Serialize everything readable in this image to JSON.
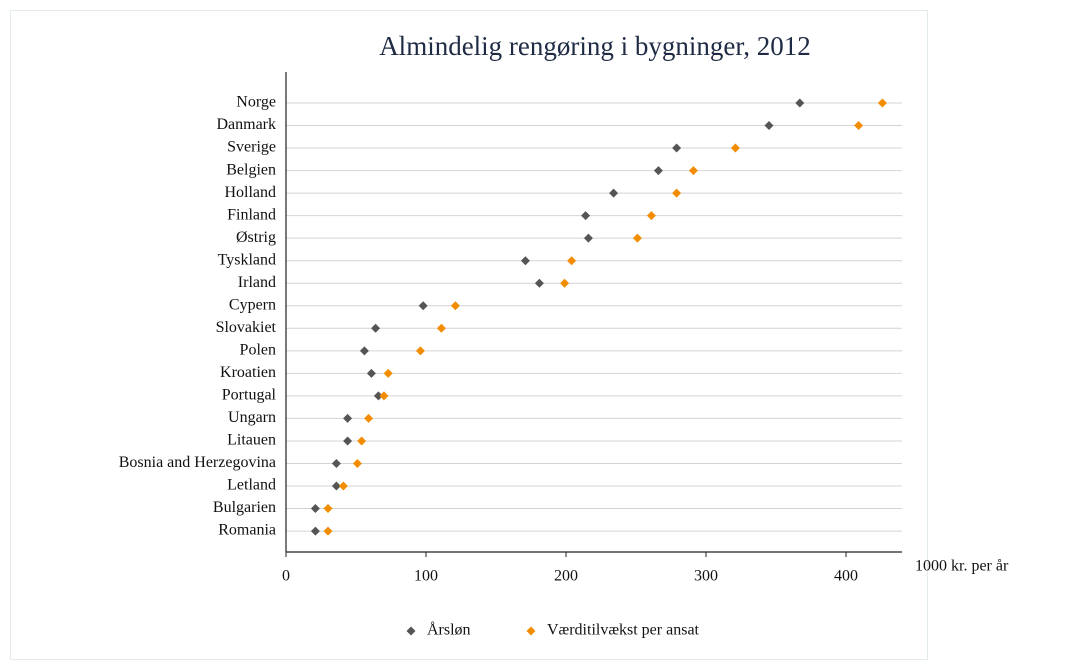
{
  "chart_data": {
    "type": "dot",
    "title": "Almindelig rengøring i bygninger, 2012",
    "xlabel": "1000 kr. per år",
    "categories": [
      "Norge",
      "Danmark",
      "Sverige",
      "Belgien",
      "Holland",
      "Finland",
      "Østrig",
      "Tyskland",
      "Irland",
      "Cypern",
      "Slovakiet",
      "Polen",
      "Kroatien",
      "Portugal",
      "Ungarn",
      "Litauen",
      "Bosnia and Herzegovina",
      "Letland",
      "Bulgarien",
      "Romania"
    ],
    "series": [
      {
        "name": "Årsløn",
        "color": "#555555",
        "values": [
          367,
          345,
          279,
          266,
          234,
          214,
          216,
          171,
          181,
          98,
          64,
          56,
          61,
          66,
          44,
          44,
          36,
          36,
          21,
          21
        ]
      },
      {
        "name": "Værditilvækst per ansat",
        "color": "#f28c00",
        "values": [
          426,
          409,
          321,
          291,
          279,
          261,
          251,
          204,
          199,
          121,
          111,
          96,
          73,
          70,
          59,
          54,
          51,
          41,
          30,
          30
        ]
      }
    ],
    "xlim": [
      0,
      440
    ],
    "xticks": [
      0,
      100,
      200,
      300,
      400
    ],
    "grid": true
  }
}
